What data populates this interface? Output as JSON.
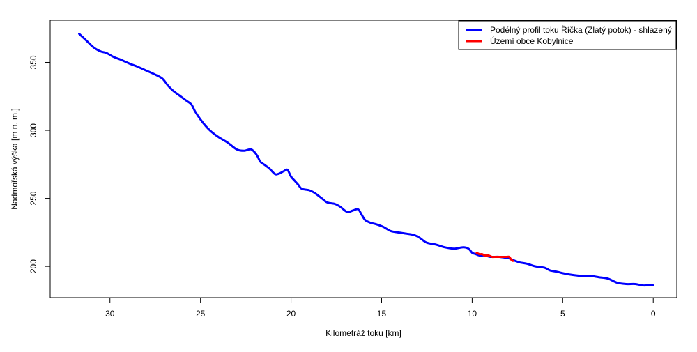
{
  "chart_data": {
    "type": "line",
    "title": "",
    "xlabel": "Kilometráž toku [km]",
    "ylabel": "Nadmořská výška [m n. m.]",
    "xlim": [
      33.3,
      -1.3
    ],
    "ylim": [
      177,
      381
    ],
    "x_ticks": [
      30,
      25,
      20,
      15,
      10,
      5,
      0
    ],
    "x_tick_labels": [
      "30",
      "25",
      "20",
      "15",
      "10",
      "5",
      "0"
    ],
    "y_ticks": [
      200,
      250,
      300,
      350
    ],
    "y_tick_labels": [
      "200",
      "250",
      "300",
      "350"
    ],
    "grid": false,
    "legend": {
      "position": "top-right",
      "entries": [
        {
          "label": "Podélný profil toku Říčka (Zlatý potok) - shlazený",
          "color": "#0000ff"
        },
        {
          "label": "Území obce Kobylnice",
          "color": "#ff0000"
        }
      ]
    },
    "series": [
      {
        "name": "Podélný profil toku Říčka (Zlatý potok) - shlazený",
        "color": "#0000ff",
        "x": [
          31.7,
          31.3,
          30.9,
          30.5,
          30.2,
          29.8,
          29.4,
          28.9,
          28.5,
          28.0,
          27.5,
          27.1,
          26.8,
          26.5,
          26.1,
          25.8,
          25.5,
          25.3,
          25.0,
          24.7,
          24.4,
          24.0,
          23.5,
          23.0,
          22.6,
          22.2,
          21.9,
          21.7,
          21.5,
          21.2,
          20.9,
          20.7,
          20.4,
          20.2,
          20.0,
          19.8,
          19.6,
          19.4,
          19.0,
          18.7,
          18.3,
          18.0,
          17.6,
          17.3,
          16.9,
          16.6,
          16.3,
          16.1,
          15.9,
          15.6,
          15.3,
          14.9,
          14.5,
          14.1,
          13.6,
          13.2,
          12.9,
          12.6,
          12.4,
          12.0,
          11.5,
          11.0,
          10.5,
          10.2,
          10.0,
          9.8,
          9.6,
          9.3,
          9.0,
          8.5,
          8.0,
          7.8,
          7.4,
          7.0,
          6.5,
          6.0,
          5.7,
          5.3,
          5.0,
          4.6,
          4.0,
          3.5,
          3.0,
          2.5,
          2.0,
          1.5,
          1.0,
          0.6,
          0.3,
          0.0
        ],
        "y": [
          371,
          366,
          361,
          358,
          357,
          354,
          352,
          349,
          347,
          344,
          341,
          338,
          333,
          329,
          325,
          322,
          319,
          314,
          308,
          303,
          299,
          295,
          291,
          286,
          285,
          286,
          282,
          277,
          275,
          272,
          268,
          268,
          270,
          271,
          266,
          263,
          260,
          257,
          256,
          254,
          250,
          247,
          246,
          244,
          240,
          241,
          242,
          238,
          234,
          232,
          231,
          229,
          226,
          225,
          224,
          223,
          221,
          218,
          217,
          216,
          214,
          213,
          214,
          213,
          210,
          209,
          208,
          208,
          207,
          207,
          206,
          205,
          203,
          202,
          200,
          199,
          197,
          196,
          195,
          194,
          193,
          193,
          192,
          191,
          188,
          187,
          187,
          186,
          186,
          186
        ]
      },
      {
        "name": "Území obce Kobylnice",
        "color": "#ff0000",
        "x": [
          9.75,
          9.6,
          9.45,
          9.3,
          9.1,
          8.9,
          8.7,
          8.5,
          8.3,
          8.1,
          7.95,
          7.85,
          7.75
        ],
        "y": [
          210,
          209,
          209,
          208,
          208,
          207,
          207,
          207,
          207,
          207,
          207,
          205,
          204
        ]
      }
    ]
  }
}
